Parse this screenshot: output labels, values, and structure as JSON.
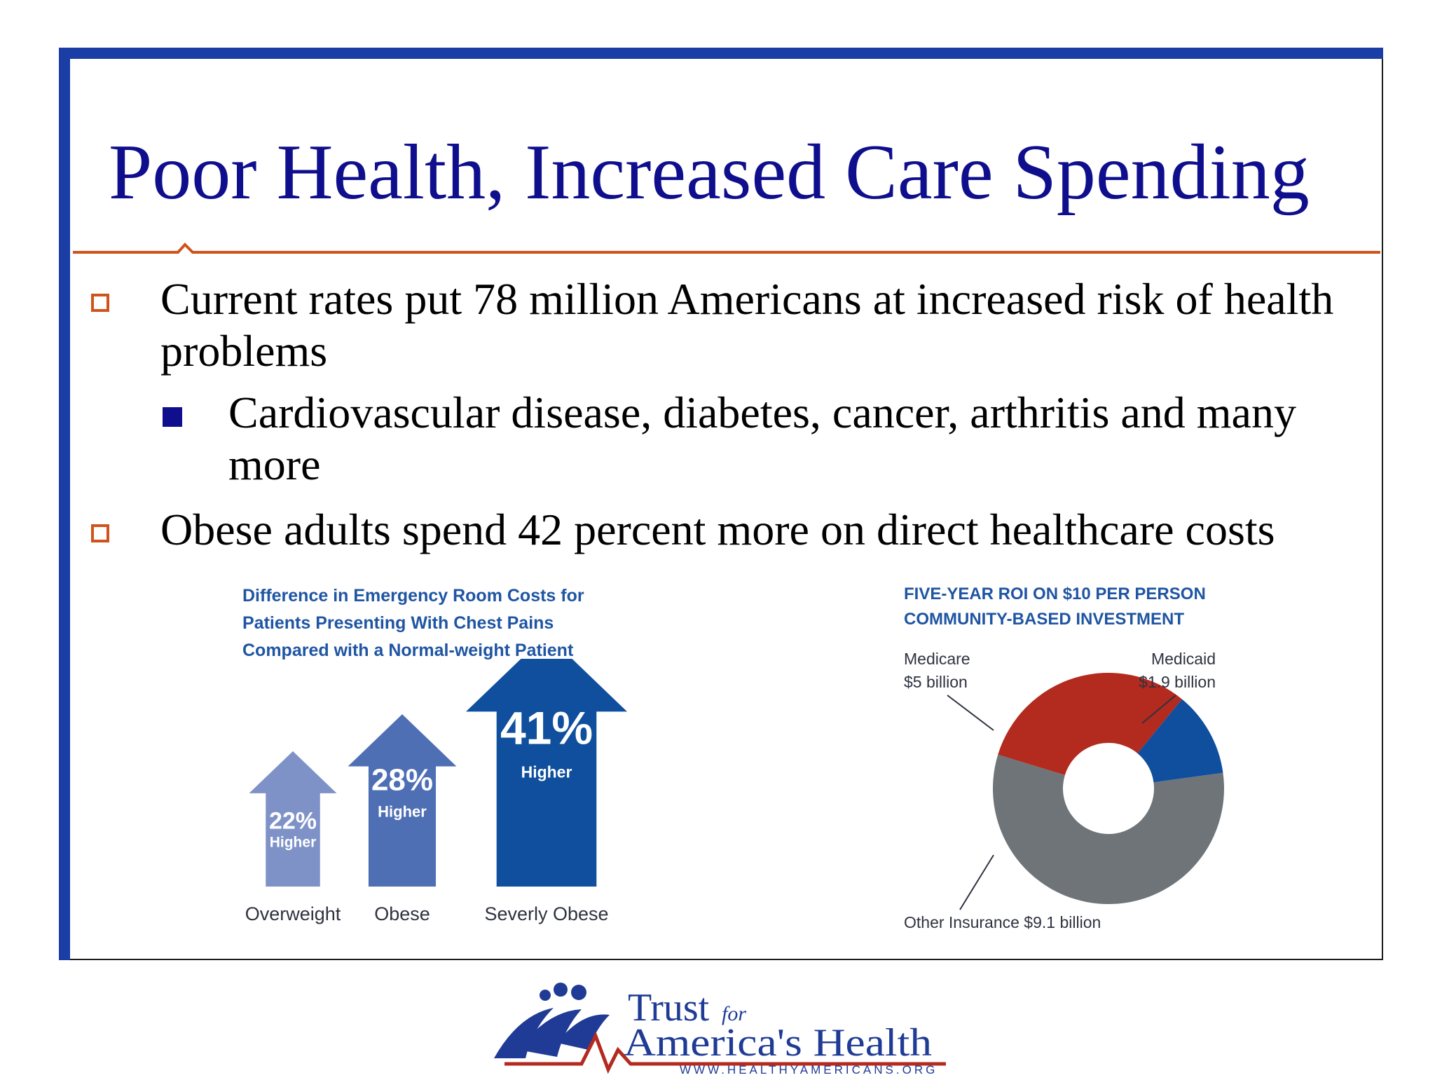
{
  "slide": {
    "title": "Poor Health, Increased Care Spending",
    "colors": {
      "frame": "#1a3ea6",
      "title": "#0f0f8e",
      "rule": "#d0531d"
    }
  },
  "bullets": [
    {
      "text": "Current rates put 78 million Americans at increased risk of health problems"
    },
    {
      "text": "Obese adults spend 42 percent more on direct healthcare costs"
    }
  ],
  "sub_bullets": [
    {
      "text": "Cardiovascular disease, diabetes, cancer, arthritis and many more"
    }
  ],
  "chart_data": [
    {
      "type": "bar",
      "title": "Difference in Emergency Room Costs for Patients Presenting With Chest Pains Compared with a Normal-weight Patient",
      "title_lines": [
        "Difference in Emergency Room Costs for",
        "Patients Presenting With Chest Pains",
        "Compared with a Normal-weight Patient"
      ],
      "categories": [
        "Overweight",
        "Obese",
        "Severly Obese"
      ],
      "values": [
        22,
        28,
        41
      ],
      "value_labels": [
        "22%",
        "28%",
        "41%"
      ],
      "sub_label": "Higher",
      "colors": [
        "#7f92c8",
        "#4f6fb5",
        "#0f4f9e"
      ]
    },
    {
      "type": "pie",
      "title": "FIVE-YEAR ROI ON $10 PER PERSON COMMUNITY-BASED INVESTMENT",
      "title_lines": [
        "FIVE-YEAR ROI ON $10 PER PERSON",
        "COMMUNITY-BASED INVESTMENT"
      ],
      "unit": "billion",
      "slices": [
        {
          "name": "Medicare",
          "value": 5,
          "label": "$5 billion",
          "color": "#b32a1f"
        },
        {
          "name": "Medicaid",
          "value": 1.9,
          "label": "$1.9 billion",
          "color": "#0f4f9e"
        },
        {
          "name": "Other Insurance",
          "value": 9.1,
          "label": "Other Insurance $9.1 billion",
          "color": "#6e7478"
        }
      ]
    }
  ],
  "logo": {
    "line1": "Trust",
    "for": "for",
    "line2": "America's Health",
    "url": "WWW.HEALTHYAMERICANS.ORG",
    "icon": "people-heartbeat-icon",
    "colors": {
      "blue": "#1f3b95",
      "red": "#b32a1f"
    }
  }
}
